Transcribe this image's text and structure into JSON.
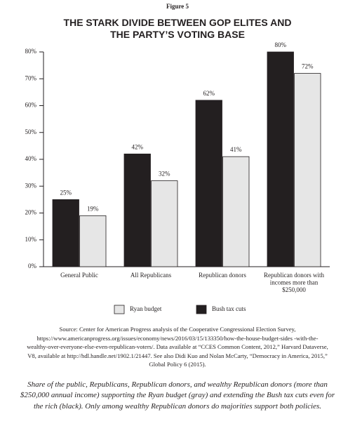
{
  "figure_label": "Figure 5",
  "chart_data": {
    "type": "bar",
    "title": "THE STARK DIVIDE BETWEEN GOP ELITES AND THE PARTY’S VOTING BASE",
    "categories": [
      "General Public",
      "All Republicans",
      "Republican donors",
      "Republican donors with incomes more than $250,000"
    ],
    "series": [
      {
        "name": "Bush tax cuts",
        "color": "#231f20",
        "values": [
          25,
          42,
          62,
          80
        ],
        "value_labels": [
          "25%",
          "42%",
          "62%",
          "80%"
        ]
      },
      {
        "name": "Ryan budget",
        "color": "#e6e6e6",
        "values": [
          19,
          32,
          41,
          72
        ],
        "value_labels": [
          "19%",
          "32%",
          "41%",
          "72%"
        ]
      }
    ],
    "ylim": [
      0,
      80
    ],
    "yticks": [
      {
        "value": 0,
        "label": "0%"
      },
      {
        "value": 10,
        "label": "10%"
      },
      {
        "value": 20,
        "label": "20%"
      },
      {
        "value": 30,
        "label": "30%"
      },
      {
        "value": 40,
        "label": "40%"
      },
      {
        "value": 50,
        "label": "50%"
      },
      {
        "value": 60,
        "label": "60%"
      },
      {
        "value": 70,
        "label": "70%"
      },
      {
        "value": 80,
        "label": "80%"
      }
    ],
    "legend": "bottom"
  },
  "source": "Source: Center for American Progress analysis of the Cooperative Congressional Election Survey, https://www.americanprogress.org/issues/economy/news/2016/03/15/133350/how-the-house-budget-sides -with-the-wealthy-over-everyone-else-even-republican-voters/. Data available at “CCES Common Content, 2012,” Harvard Dataverse, V8, available at http://hdl.handle.net/1902.1/21447. See also Didi Kuo and Nolan McCarty, “Democracy in America, 2015,” Global Policy 6 (2015).",
  "caption": "Share of the public, Republicans, Republican donors, and wealthy Republican donors (more than $250,000 annual income) supporting the Ryan budget (gray) and extending the Bush tax cuts even for the rich (black). Only among wealthy Republican donors do majorities support both policies."
}
